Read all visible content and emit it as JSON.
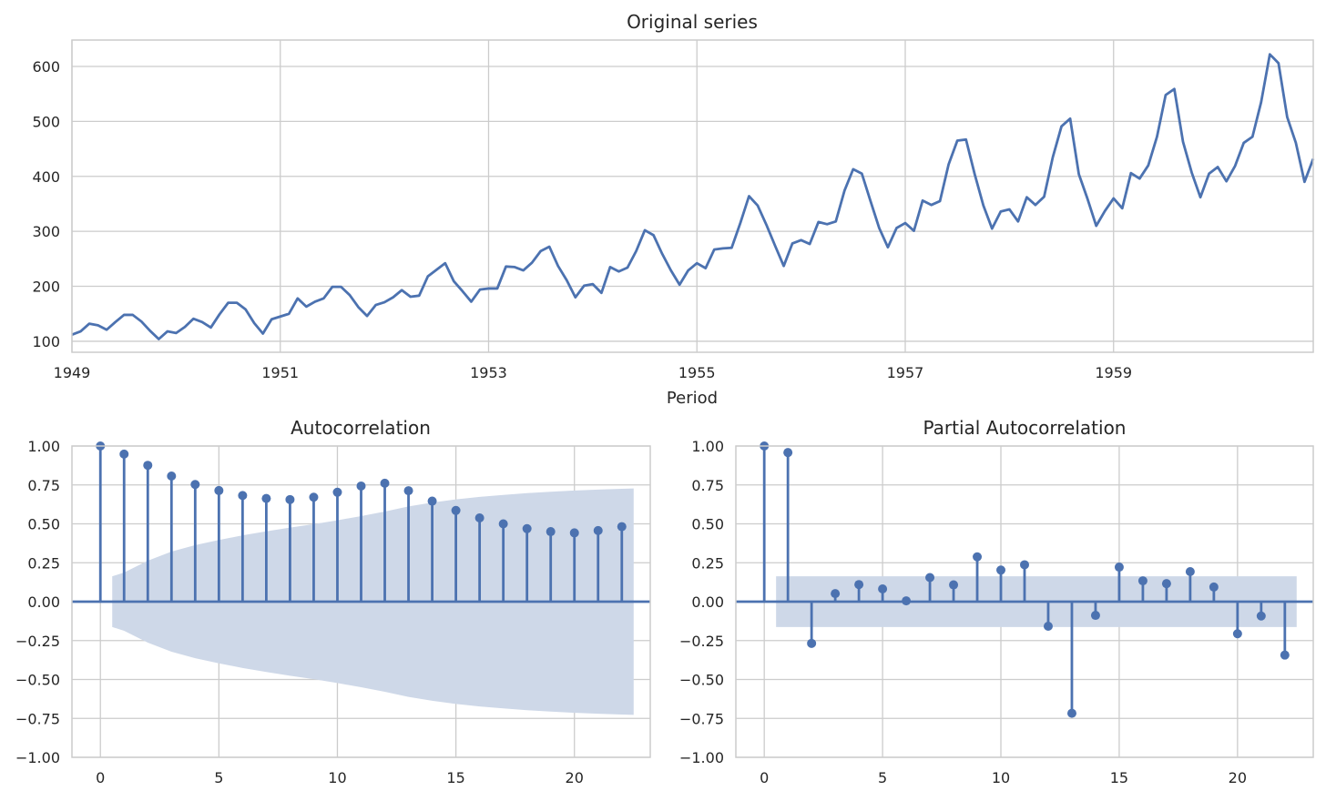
{
  "chart_data": [
    {
      "type": "line",
      "title": "Original series",
      "xlabel": "Period",
      "ylabel": "",
      "xlim": [
        1949,
        1960.917
      ],
      "ylim": [
        80,
        648
      ],
      "xticks": [
        1949,
        1951,
        1953,
        1955,
        1957,
        1959
      ],
      "xtick_labels": [
        "1949",
        "1951",
        "1953",
        "1955",
        "1957",
        "1959"
      ],
      "yticks": [
        100,
        200,
        300,
        400,
        500,
        600
      ],
      "ytick_labels": [
        "100",
        "200",
        "300",
        "400",
        "500",
        "600"
      ],
      "grid": true,
      "color": "#4c72b0",
      "start_year": 1949,
      "frequency": "monthly",
      "values": [
        112,
        118,
        132,
        129,
        121,
        135,
        148,
        148,
        136,
        119,
        104,
        118,
        115,
        126,
        141,
        135,
        125,
        149,
        170,
        170,
        158,
        133,
        114,
        140,
        145,
        150,
        178,
        163,
        172,
        178,
        199,
        199,
        184,
        162,
        146,
        166,
        171,
        180,
        193,
        181,
        183,
        218,
        230,
        242,
        209,
        191,
        172,
        194,
        196,
        196,
        236,
        235,
        229,
        243,
        264,
        272,
        237,
        211,
        180,
        201,
        204,
        188,
        235,
        227,
        234,
        264,
        302,
        293,
        259,
        229,
        203,
        229,
        242,
        233,
        267,
        269,
        270,
        315,
        364,
        347,
        312,
        274,
        237,
        278,
        284,
        277,
        317,
        313,
        318,
        374,
        413,
        405,
        355,
        306,
        271,
        306,
        315,
        301,
        356,
        348,
        355,
        422,
        465,
        467,
        404,
        347,
        305,
        336,
        340,
        318,
        362,
        348,
        363,
        435,
        491,
        505,
        404,
        359,
        310,
        337,
        360,
        342,
        406,
        396,
        420,
        472,
        548,
        559,
        463,
        407,
        362,
        405,
        417,
        391,
        419,
        461,
        472,
        535,
        622,
        606,
        508,
        461,
        390,
        432
      ]
    },
    {
      "type": "stem",
      "title": "Autocorrelation",
      "xlim": [
        -1.2,
        23.2
      ],
      "ylim": [
        -1,
        1
      ],
      "xticks": [
        0,
        5,
        10,
        15,
        20
      ],
      "xtick_labels": [
        "0",
        "5",
        "10",
        "15",
        "20"
      ],
      "yticks": [
        -1,
        -0.75,
        -0.5,
        -0.25,
        0,
        0.25,
        0.5,
        0.75,
        1
      ],
      "ytick_labels": [
        "−1.00",
        "−0.75",
        "−0.50",
        "−0.25",
        "0.00",
        "0.25",
        "0.50",
        "0.75",
        "1.00"
      ],
      "grid": true,
      "color": "#4c72b0",
      "band_color": "#ced8e8",
      "lags": [
        0,
        1,
        2,
        3,
        4,
        5,
        6,
        7,
        8,
        9,
        10,
        11,
        12,
        13,
        14,
        15,
        16,
        17,
        18,
        19,
        20,
        21,
        22
      ],
      "values": [
        1.0,
        0.948,
        0.876,
        0.807,
        0.753,
        0.714,
        0.682,
        0.663,
        0.656,
        0.671,
        0.703,
        0.743,
        0.761,
        0.713,
        0.646,
        0.586,
        0.538,
        0.5,
        0.469,
        0.45,
        0.442,
        0.457,
        0.482
      ],
      "confidence_band": {
        "lags": [
          0.5,
          1,
          2,
          3,
          4,
          5,
          6,
          7,
          8,
          9,
          10,
          11,
          12,
          13,
          14,
          15,
          16,
          17,
          18,
          19,
          20,
          21,
          22,
          22.5
        ],
        "upper": [
          0.163,
          0.187,
          0.263,
          0.322,
          0.363,
          0.396,
          0.426,
          0.452,
          0.476,
          0.498,
          0.523,
          0.55,
          0.579,
          0.612,
          0.637,
          0.657,
          0.673,
          0.686,
          0.697,
          0.706,
          0.714,
          0.72,
          0.725,
          0.727
        ],
        "lower": [
          -0.163,
          -0.187,
          -0.263,
          -0.322,
          -0.363,
          -0.396,
          -0.426,
          -0.452,
          -0.476,
          -0.498,
          -0.523,
          -0.55,
          -0.579,
          -0.612,
          -0.637,
          -0.657,
          -0.673,
          -0.686,
          -0.697,
          -0.706,
          -0.714,
          -0.72,
          -0.725,
          -0.727
        ]
      }
    },
    {
      "type": "stem",
      "title": "Partial Autocorrelation",
      "xlim": [
        -1.2,
        23.2
      ],
      "ylim": [
        -1,
        1
      ],
      "xticks": [
        0,
        5,
        10,
        15,
        20
      ],
      "xtick_labels": [
        "0",
        "5",
        "10",
        "15",
        "20"
      ],
      "yticks": [
        -1,
        -0.75,
        -0.5,
        -0.25,
        0,
        0.25,
        0.5,
        0.75,
        1
      ],
      "ytick_labels": [
        "−1.00",
        "−0.75",
        "−0.50",
        "−0.25",
        "0.00",
        "0.25",
        "0.50",
        "0.75",
        "1.00"
      ],
      "grid": true,
      "color": "#4c72b0",
      "band_color": "#ced8e8",
      "lags": [
        0,
        1,
        2,
        3,
        4,
        5,
        6,
        7,
        8,
        9,
        10,
        11,
        12,
        13,
        14,
        15,
        16,
        17,
        18,
        19,
        20,
        21,
        22
      ],
      "values": [
        1.0,
        0.958,
        -0.268,
        0.052,
        0.11,
        0.082,
        0.005,
        0.155,
        0.108,
        0.288,
        0.203,
        0.237,
        -0.158,
        -0.717,
        -0.088,
        0.222,
        0.134,
        0.116,
        0.193,
        0.094,
        -0.206,
        -0.092,
        -0.343
      ],
      "confidence_band": {
        "lags": [
          0.5,
          22.5
        ],
        "upper": [
          0.163,
          0.163
        ],
        "lower": [
          -0.163,
          -0.163
        ]
      }
    }
  ]
}
